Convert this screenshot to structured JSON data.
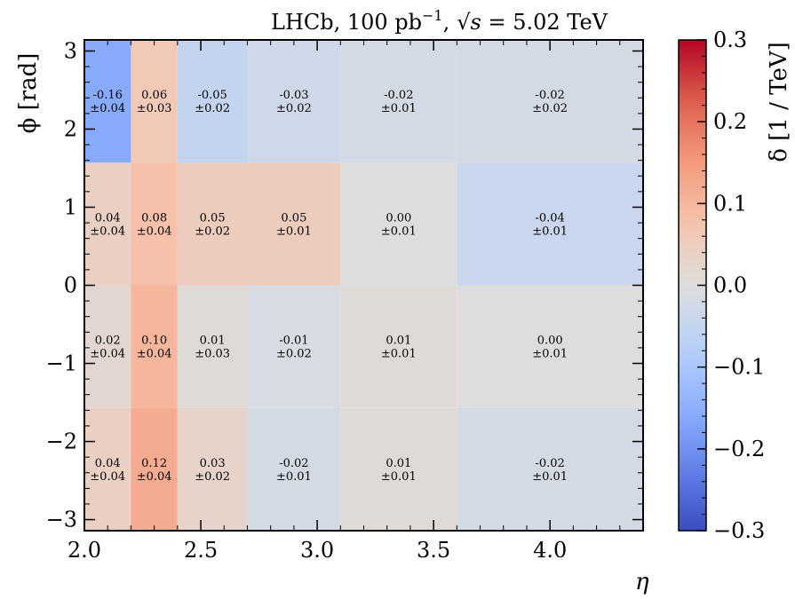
{
  "chart_data": {
    "type": "heatmap",
    "title": "LHCb, 100 pb⁻¹, √s = 5.02 TeV",
    "title_parts": {
      "experiment": "LHCb, 100 pb",
      "lumi_exponent": "−1",
      "separator": ",",
      "sqrt_s": "√s",
      "energy": " = 5.02 TeV"
    },
    "xlabel": "η",
    "ylabel": "ϕ [rad]",
    "colorbar_label": "δ [1 / TeV]",
    "xlim": [
      2.0,
      4.4
    ],
    "ylim": [
      -3.1416,
      3.1416
    ],
    "xticks": [
      2.0,
      2.5,
      3.0,
      3.5,
      4.0
    ],
    "xtick_labels": [
      "2.0",
      "2.5",
      "3.0",
      "3.5",
      "4.0"
    ],
    "yticks": [
      -3,
      -2,
      -1,
      0,
      1,
      2,
      3
    ],
    "ytick_labels": [
      "−3",
      "−2",
      "−1",
      "0",
      "1",
      "2",
      "3"
    ],
    "x_edges": [
      2.0,
      2.2,
      2.4,
      2.7,
      3.1,
      3.6,
      4.4
    ],
    "y_edges": [
      -3.1416,
      -1.5708,
      0.0,
      1.5708,
      3.1416
    ],
    "clim": [
      -0.3,
      0.3
    ],
    "colorbar_ticks": [
      -0.3,
      -0.2,
      -0.1,
      0.0,
      0.1,
      0.2,
      0.3
    ],
    "colorbar_tick_labels": [
      "−0.3",
      "−0.2",
      "−0.1",
      "0.0",
      "0.1",
      "0.2",
      "0.3"
    ],
    "colormap": "coolwarm",
    "rows": [
      {
        "values": [
          0.04,
          0.12,
          0.03,
          -0.02,
          0.01,
          -0.02
        ],
        "value_labels": [
          "0.04",
          "0.12",
          "0.03",
          "-0.02",
          "0.01",
          "-0.02"
        ],
        "error_labels": [
          "±0.04",
          "±0.04",
          "±0.02",
          "±0.01",
          "±0.01",
          "±0.01"
        ]
      },
      {
        "values": [
          0.02,
          0.1,
          0.01,
          -0.01,
          0.01,
          0.0
        ],
        "value_labels": [
          "0.02",
          "0.10",
          "0.01",
          "-0.01",
          "0.01",
          "0.00"
        ],
        "error_labels": [
          "±0.04",
          "±0.04",
          "±0.03",
          "±0.02",
          "±0.01",
          "±0.01"
        ]
      },
      {
        "values": [
          0.04,
          0.08,
          0.05,
          0.05,
          0.0,
          -0.04
        ],
        "value_labels": [
          "0.04",
          "0.08",
          "0.05",
          "0.05",
          "0.00",
          "-0.04"
        ],
        "error_labels": [
          "±0.04",
          "±0.04",
          "±0.02",
          "±0.01",
          "±0.01",
          "±0.01"
        ]
      },
      {
        "values": [
          -0.16,
          0.06,
          -0.05,
          -0.03,
          -0.02,
          -0.02
        ],
        "value_labels": [
          "-0.16",
          "0.06",
          "-0.05",
          "-0.03",
          "-0.02",
          "-0.02"
        ],
        "error_labels": [
          "±0.04",
          "±0.03",
          "±0.02",
          "±0.02",
          "±0.01",
          "±0.02"
        ]
      }
    ]
  }
}
